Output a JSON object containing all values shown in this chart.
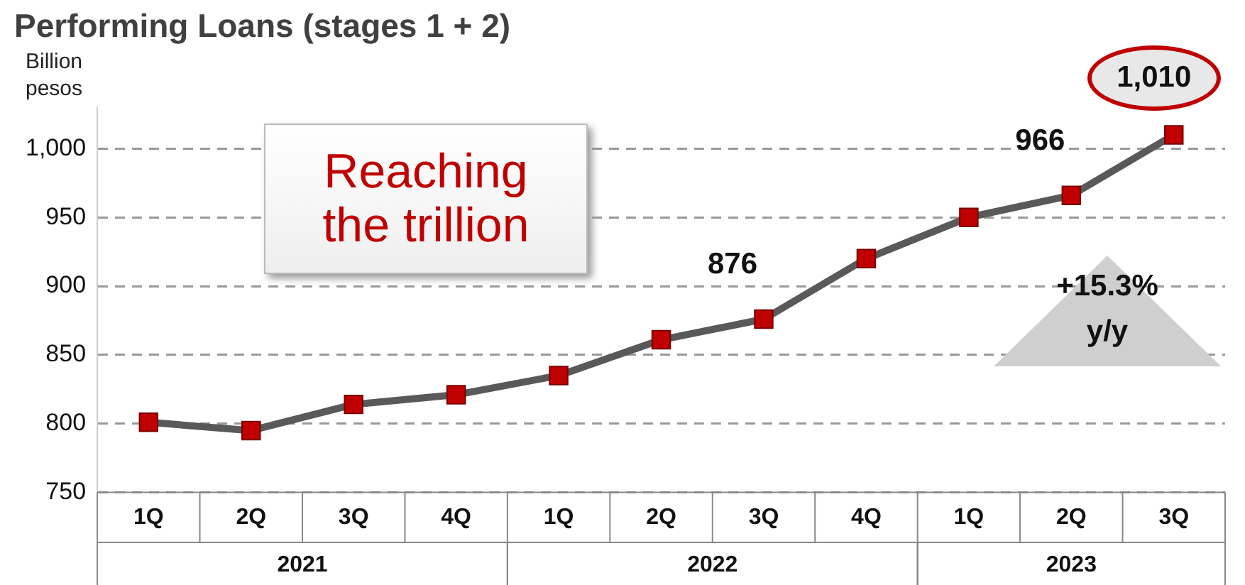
{
  "chart_data": {
    "type": "line",
    "title": "Performing Loans (stages 1 + 2)",
    "ylabel": "Billion pesos",
    "categories": [
      "1Q",
      "2Q",
      "3Q",
      "4Q",
      "1Q",
      "2Q",
      "3Q",
      "4Q",
      "1Q",
      "2Q",
      "3Q"
    ],
    "series": [
      {
        "color": "#c00000",
        "values": [
          801,
          795,
          814,
          821,
          835,
          861,
          876,
          920,
          950,
          966,
          1010
        ],
        "value_labels": [
          null,
          null,
          null,
          null,
          null,
          null,
          "876",
          null,
          null,
          "966",
          "1,010"
        ]
      }
    ],
    "ylim": [
      750,
      1030
    ],
    "yticks": [
      750,
      800,
      850,
      900,
      950,
      {
        "value": 1000,
        "label": "1,000"
      }
    ],
    "annotations": [
      "Reaching the trillion",
      "+15.3% y/y",
      "2021",
      "2022",
      "2023"
    ],
    "grid": "y",
    "marker": "square",
    "legend": false
  }
}
